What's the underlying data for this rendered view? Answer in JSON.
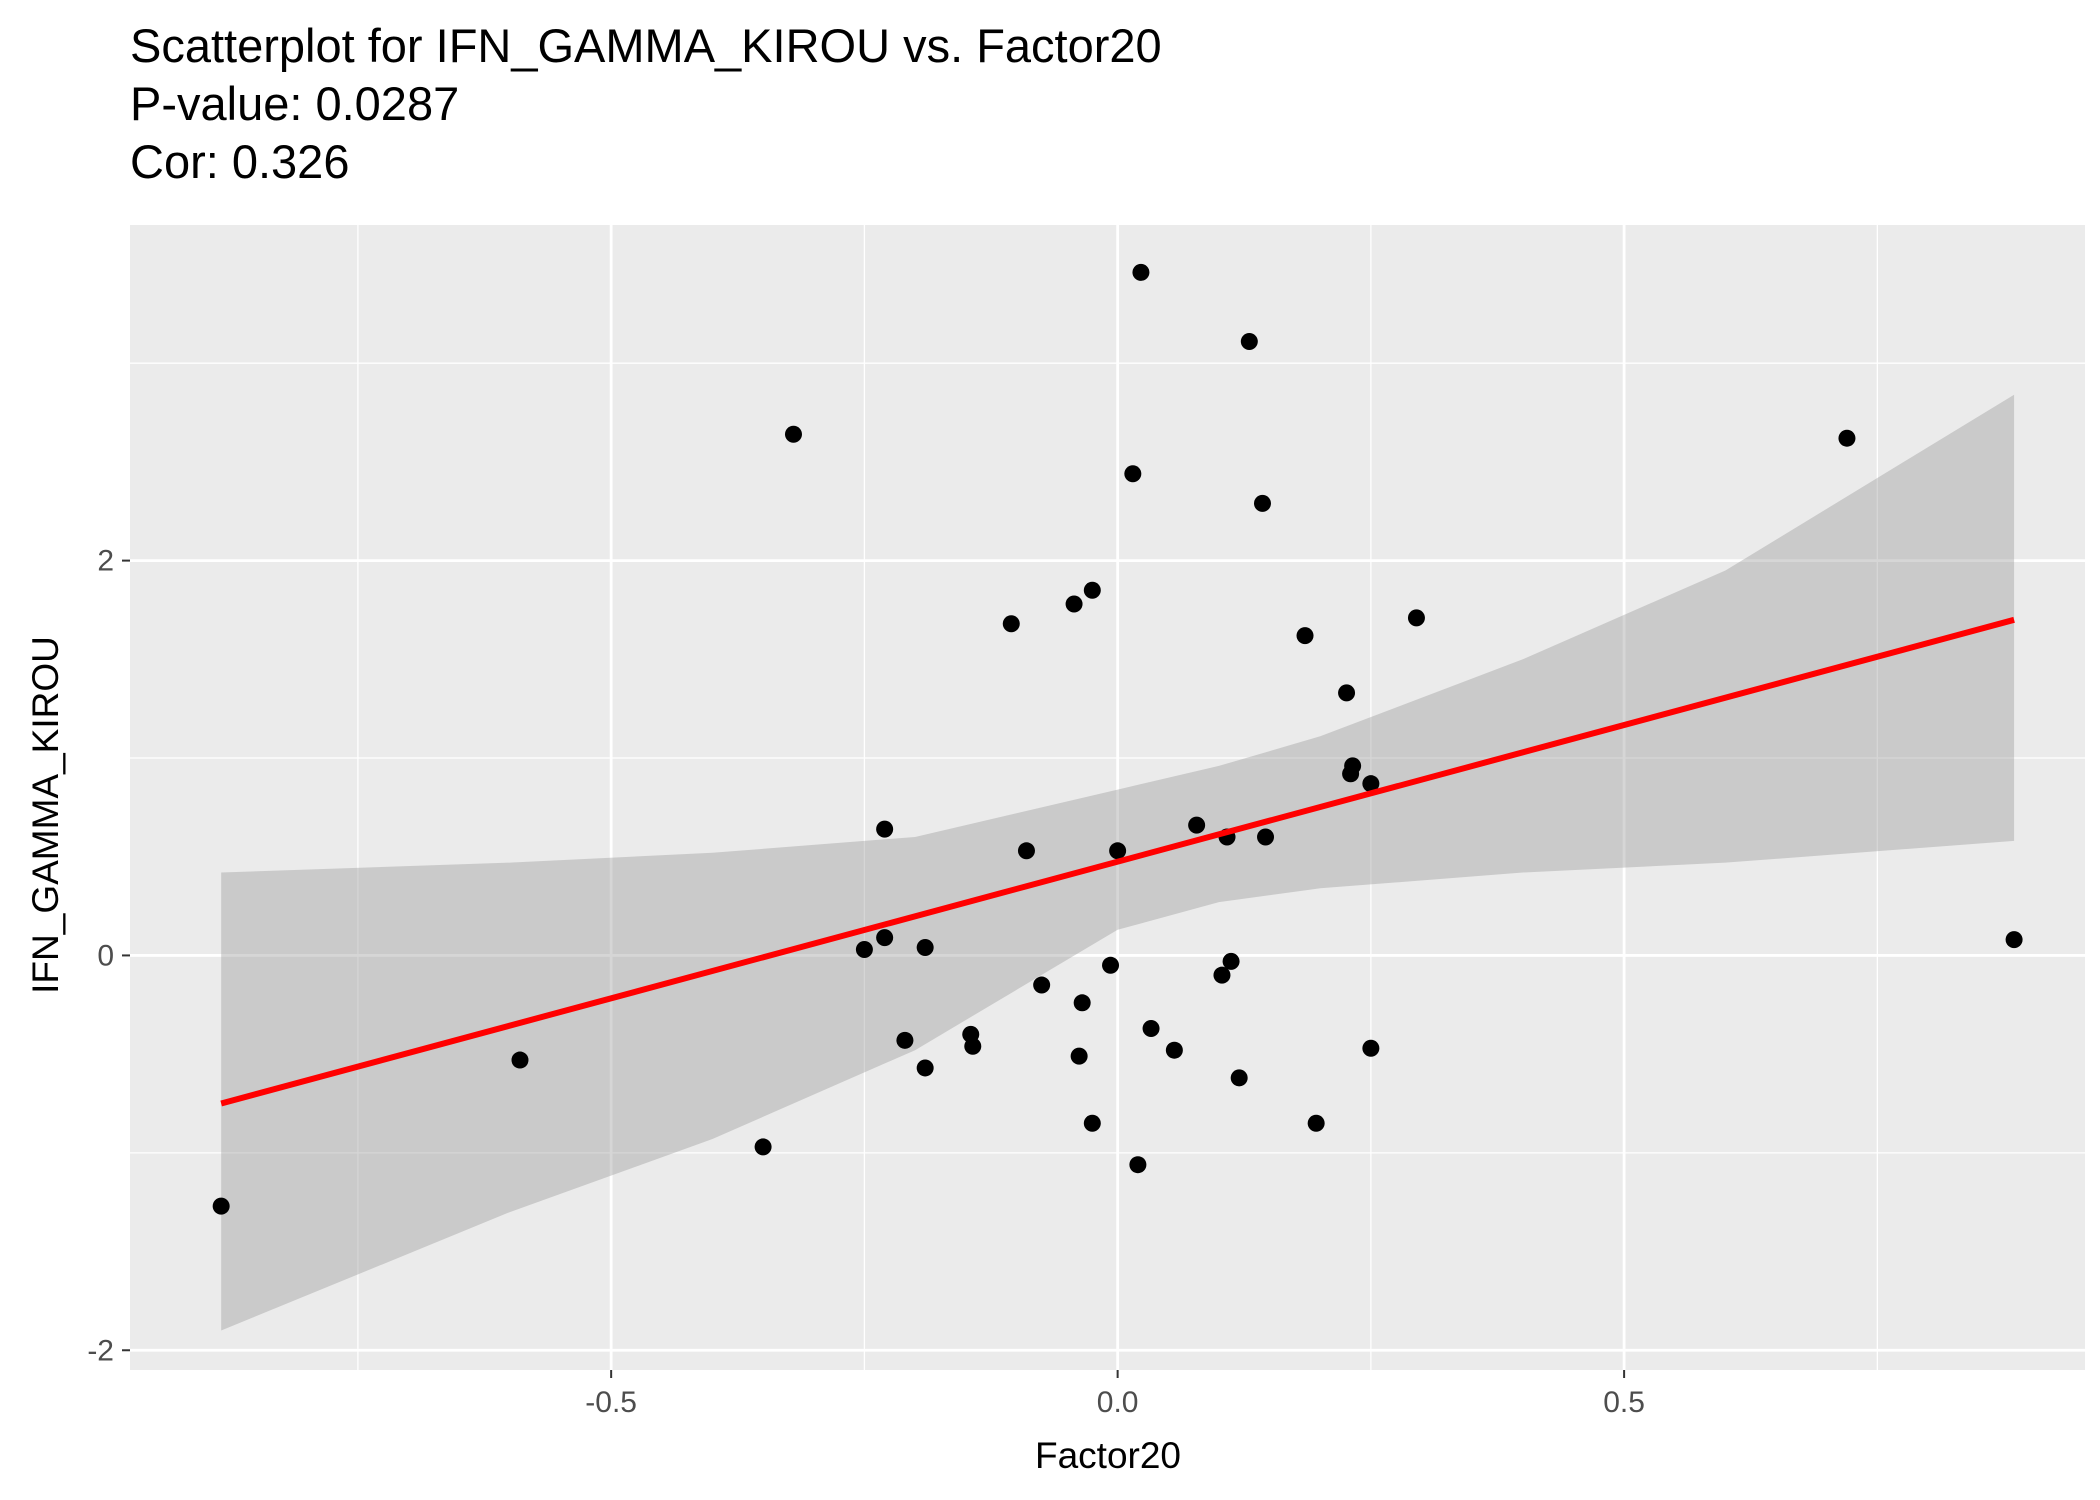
{
  "chart_data": {
    "type": "scatter",
    "title": "Scatterplot for IFN_GAMMA_KIROU vs. Factor20",
    "subtitle_lines": [
      "P-value: 0.0287",
      "Cor: 0.326"
    ],
    "xlabel": "Factor20",
    "ylabel": "IFN_GAMMA_KIROU",
    "xlim": [
      -0.975,
      0.955
    ],
    "ylim": [
      -2.1,
      3.7
    ],
    "x_ticks": [
      -0.5,
      0.0,
      0.5
    ],
    "x_tick_labels": [
      "-0.5",
      "0.0",
      "0.5"
    ],
    "y_ticks": [
      -2,
      0,
      2
    ],
    "y_tick_labels": [
      "-2",
      "0",
      "2"
    ],
    "grid": true,
    "colors": {
      "panel_background": "#ebebeb",
      "grid": "#ffffff",
      "points": "#000000",
      "fit_line": "#ff0000",
      "confidence_band": "#999999"
    },
    "points": [
      {
        "x": -0.885,
        "y": -1.27
      },
      {
        "x": -0.59,
        "y": -0.53
      },
      {
        "x": -0.35,
        "y": -0.97
      },
      {
        "x": -0.32,
        "y": 2.64
      },
      {
        "x": -0.25,
        "y": 0.03
      },
      {
        "x": -0.23,
        "y": 0.64
      },
      {
        "x": -0.23,
        "y": 0.09
      },
      {
        "x": -0.21,
        "y": -0.43
      },
      {
        "x": -0.19,
        "y": -0.57
      },
      {
        "x": -0.19,
        "y": 0.04
      },
      {
        "x": -0.145,
        "y": -0.4
      },
      {
        "x": -0.143,
        "y": -0.46
      },
      {
        "x": -0.105,
        "y": 1.68
      },
      {
        "x": -0.09,
        "y": 0.53
      },
      {
        "x": -0.075,
        "y": -0.15
      },
      {
        "x": -0.043,
        "y": 1.78
      },
      {
        "x": -0.038,
        "y": -0.51
      },
      {
        "x": -0.035,
        "y": -0.24
      },
      {
        "x": -0.025,
        "y": 1.85
      },
      {
        "x": -0.025,
        "y": -0.85
      },
      {
        "x": -0.007,
        "y": -0.05
      },
      {
        "x": 0.0,
        "y": 0.53
      },
      {
        "x": 0.015,
        "y": 2.44
      },
      {
        "x": 0.02,
        "y": -1.06
      },
      {
        "x": 0.023,
        "y": 3.46
      },
      {
        "x": 0.033,
        "y": -0.37
      },
      {
        "x": 0.056,
        "y": -0.48
      },
      {
        "x": 0.078,
        "y": 0.66
      },
      {
        "x": 0.103,
        "y": -0.1
      },
      {
        "x": 0.108,
        "y": 0.6
      },
      {
        "x": 0.112,
        "y": -0.03
      },
      {
        "x": 0.12,
        "y": -0.62
      },
      {
        "x": 0.13,
        "y": 3.11
      },
      {
        "x": 0.143,
        "y": 2.29
      },
      {
        "x": 0.146,
        "y": 0.6
      },
      {
        "x": 0.185,
        "y": 1.62
      },
      {
        "x": 0.196,
        "y": -0.85
      },
      {
        "x": 0.226,
        "y": 1.33
      },
      {
        "x": 0.23,
        "y": 0.92
      },
      {
        "x": 0.232,
        "y": 0.96
      },
      {
        "x": 0.25,
        "y": 0.87
      },
      {
        "x": 0.25,
        "y": -0.47
      },
      {
        "x": 0.295,
        "y": 1.71
      },
      {
        "x": 0.72,
        "y": 2.62
      },
      {
        "x": 0.885,
        "y": 0.08
      }
    ],
    "fit_line": [
      {
        "x": -0.885,
        "y": -0.75
      },
      {
        "x": 0.885,
        "y": 1.7
      }
    ],
    "confidence_band": [
      {
        "x": -0.885,
        "lower": -1.9,
        "upper": 0.42
      },
      {
        "x": -0.6,
        "lower": -1.3,
        "upper": 0.47
      },
      {
        "x": -0.4,
        "lower": -0.93,
        "upper": 0.52
      },
      {
        "x": -0.2,
        "lower": -0.48,
        "upper": 0.6
      },
      {
        "x": 0.0,
        "lower": 0.13,
        "upper": 0.84
      },
      {
        "x": 0.1,
        "lower": 0.27,
        "upper": 0.96
      },
      {
        "x": 0.2,
        "lower": 0.34,
        "upper": 1.11
      },
      {
        "x": 0.4,
        "lower": 0.42,
        "upper": 1.5
      },
      {
        "x": 0.6,
        "lower": 0.47,
        "upper": 1.95
      },
      {
        "x": 0.885,
        "lower": 0.58,
        "upper": 2.84
      }
    ]
  }
}
